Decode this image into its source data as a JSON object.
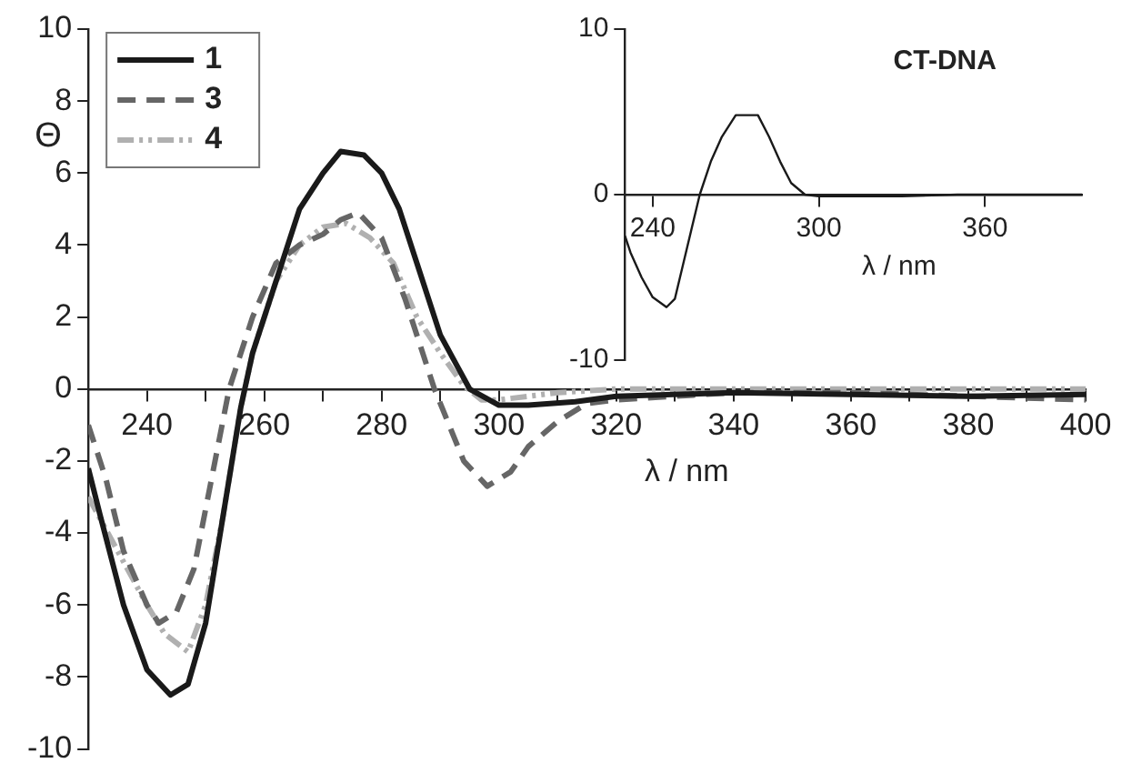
{
  "chart_data": [
    {
      "type": "line",
      "xlabel": "λ / nm",
      "ylabel": "Θ",
      "xlim": [
        230,
        400
      ],
      "ylim": [
        -10,
        10
      ],
      "xticks": [
        240,
        {
          "value": 250,
          "label": null
        },
        260,
        {
          "value": 270,
          "label": null
        },
        280,
        {
          "value": 290,
          "label": null
        },
        300,
        {
          "value": 310,
          "label": null
        },
        320,
        {
          "value": 330,
          "label": null
        },
        340,
        {
          "value": 350,
          "label": null
        },
        360,
        {
          "value": 370,
          "label": null
        },
        380,
        {
          "value": 390,
          "label": null
        },
        400
      ],
      "yticks": [
        -10,
        -8,
        -6,
        -4,
        -2,
        0,
        2,
        4,
        6,
        8,
        10
      ],
      "grid": false,
      "legend": "top left",
      "series": [
        {
          "name": "1",
          "color": "#1a1a1a",
          "line_style": "solid",
          "x": [
            230,
            232,
            236,
            240,
            244,
            247,
            250,
            253,
            256,
            258,
            262,
            266,
            270,
            273,
            277,
            280,
            283,
            286,
            290,
            295,
            300,
            305,
            313,
            320,
            340,
            360,
            380,
            400
          ],
          "values": [
            -2.2,
            -3.5,
            -6,
            -7.8,
            -8.5,
            -8.2,
            -6.5,
            -3.5,
            -0.5,
            1,
            3,
            5,
            6,
            6.6,
            6.5,
            6,
            5,
            3.5,
            1.5,
            0,
            -0.45,
            -0.45,
            -0.35,
            -0.2,
            -0.1,
            -0.15,
            -0.2,
            -0.15
          ]
        },
        {
          "name": "3",
          "color": "#666666",
          "line_style": "dashed",
          "x": [
            230,
            233,
            236,
            240,
            242,
            245,
            248,
            251,
            254,
            258,
            262,
            266,
            270,
            273,
            276,
            280,
            284,
            289,
            294,
            298,
            302,
            305,
            310,
            315,
            320,
            340,
            360,
            380,
            400
          ],
          "values": [
            -1,
            -2.5,
            -4.5,
            -6,
            -6.5,
            -6.2,
            -5,
            -2.5,
            0,
            2,
            3.5,
            4,
            4.3,
            4.7,
            4.9,
            4.2,
            2.5,
            0,
            -2,
            -2.7,
            -2.3,
            -1.6,
            -0.9,
            -0.4,
            -0.3,
            -0.1,
            -0.1,
            -0.2,
            -0.3
          ]
        },
        {
          "name": "4",
          "color": "#b0b0b0",
          "line_style": "dotted",
          "x": [
            230,
            235,
            240,
            243,
            247,
            250,
            253,
            256,
            258,
            262,
            266,
            270,
            274,
            278,
            282,
            286,
            290,
            294,
            297,
            300,
            305,
            310,
            320,
            340,
            400
          ],
          "values": [
            -3,
            -4.5,
            -6,
            -6.8,
            -7.3,
            -6,
            -3.5,
            -0.5,
            1,
            3,
            4,
            4.5,
            4.6,
            4.2,
            3.5,
            2,
            1,
            0.1,
            -0.3,
            -0.3,
            -0.2,
            -0.1,
            0,
            0,
            0
          ]
        }
      ]
    },
    {
      "type": "line",
      "title": "CT-DNA",
      "xlabel": "λ / nm",
      "xlim": [
        230,
        395
      ],
      "ylim": [
        -10,
        10
      ],
      "xticks": [
        240,
        300,
        360
      ],
      "yticks": [
        -10,
        0,
        10
      ],
      "grid": false,
      "legend": false,
      "series": [
        {
          "color": "#1a1a1a",
          "line_style": "solid",
          "x": [
            230,
            232,
            236,
            240,
            245,
            248,
            252,
            257,
            261,
            265,
            270,
            278,
            282,
            286,
            290,
            295,
            300,
            310,
            330,
            350,
            395
          ],
          "values": [
            -2.5,
            -3.5,
            -5,
            -6.2,
            -6.8,
            -6.3,
            -3.5,
            0,
            2,
            3.5,
            4.8,
            4.8,
            3.5,
            2,
            0.7,
            0,
            -0.1,
            -0.1,
            -0.1,
            0,
            0
          ]
        }
      ]
    }
  ]
}
